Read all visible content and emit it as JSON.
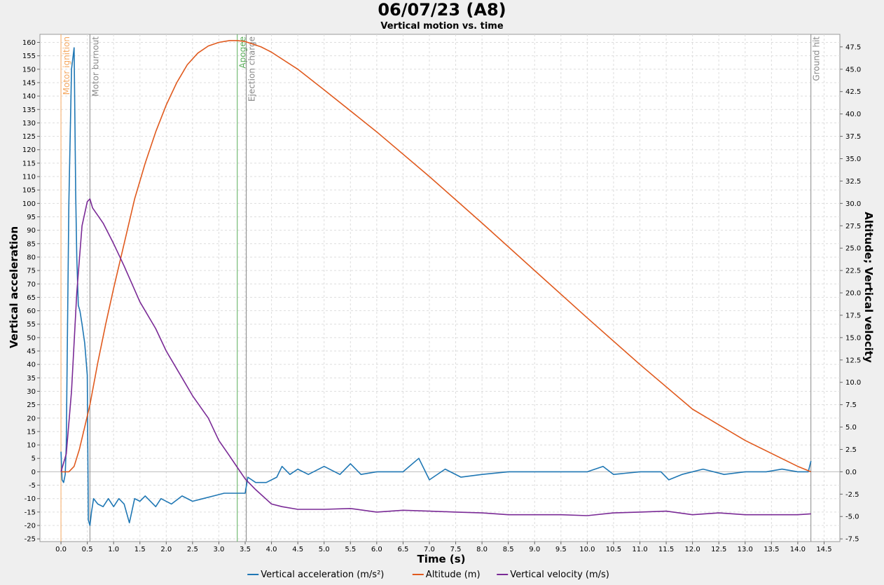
{
  "chart_data": {
    "type": "line",
    "title": "06/07/23 (A8)",
    "subtitle": "Vertical motion vs. time",
    "xlabel": "Time (s)",
    "ylabel_left": "Vertical acceleration",
    "ylabel_right": "Altitude; Vertical velocity",
    "xlim": [
      -0.4,
      14.8
    ],
    "ylim_left": [
      -26,
      163
    ],
    "ylim_right": [
      -7.8,
      48.9
    ],
    "x_ticks": [
      0.0,
      0.5,
      1.0,
      1.5,
      2.0,
      2.5,
      3.0,
      3.5,
      4.0,
      4.5,
      5.0,
      5.5,
      6.0,
      6.5,
      7.0,
      7.5,
      8.0,
      8.5,
      9.0,
      9.5,
      10.0,
      10.5,
      11.0,
      11.5,
      12.0,
      12.5,
      13.0,
      13.5,
      14.0,
      14.5
    ],
    "y_ticks_left": [
      -25,
      -20,
      -15,
      -10,
      -5,
      0,
      5,
      10,
      15,
      20,
      25,
      30,
      35,
      40,
      45,
      50,
      55,
      60,
      65,
      70,
      75,
      80,
      85,
      90,
      95,
      100,
      105,
      110,
      115,
      120,
      125,
      130,
      135,
      140,
      145,
      150,
      155,
      160
    ],
    "y_ticks_right": [
      -7.5,
      -5.0,
      -2.5,
      0.0,
      2.5,
      5.0,
      7.5,
      10.0,
      12.5,
      15.0,
      17.5,
      20.0,
      22.5,
      25.0,
      27.5,
      30.0,
      32.5,
      35.0,
      37.5,
      40.0,
      42.5,
      45.0,
      47.5
    ],
    "grid": true,
    "legend_position": "bottom",
    "events": [
      {
        "label": "Motor ignition",
        "t": 0.0,
        "color": "#f5a860"
      },
      {
        "label": "Motor burnout",
        "t": 0.55,
        "color": "#888888"
      },
      {
        "label": "Apogee",
        "t": 3.35,
        "color": "#5aad5a"
      },
      {
        "label": "Ejection charge",
        "t": 3.52,
        "color": "#888888"
      },
      {
        "label": "Ground hit",
        "t": 14.25,
        "color": "#888888"
      }
    ],
    "series": [
      {
        "name": "Vertical acceleration (m/s²)",
        "color": "#1f77b4",
        "axis": "left",
        "x": [
          0.0,
          0.02,
          0.05,
          0.08,
          0.1,
          0.15,
          0.2,
          0.25,
          0.28,
          0.3,
          0.33,
          0.36,
          0.4,
          0.45,
          0.5,
          0.52,
          0.55,
          0.58,
          0.62,
          0.7,
          0.8,
          0.9,
          1.0,
          1.1,
          1.2,
          1.3,
          1.4,
          1.5,
          1.6,
          1.8,
          1.9,
          2.1,
          2.3,
          2.5,
          2.7,
          2.9,
          3.1,
          3.3,
          3.5,
          3.55,
          3.7,
          3.9,
          4.1,
          4.2,
          4.35,
          4.5,
          4.7,
          5.0,
          5.3,
          5.5,
          5.7,
          6.0,
          6.5,
          6.8,
          7.0,
          7.3,
          7.6,
          8.0,
          8.5,
          9.0,
          9.5,
          10.0,
          10.3,
          10.5,
          11.0,
          11.4,
          11.55,
          11.8,
          12.2,
          12.6,
          13.0,
          13.4,
          13.7,
          14.0,
          14.2,
          14.25
        ],
        "y": [
          7.5,
          -3,
          -4,
          -1,
          10,
          100,
          150,
          158,
          103,
          80,
          62,
          60,
          55,
          48,
          36,
          -18,
          -20,
          -15,
          -10,
          -12,
          -13,
          -10,
          -13,
          -10,
          -12,
          -19,
          -10,
          -11,
          -9,
          -13,
          -10,
          -12,
          -9,
          -11,
          -10,
          -9,
          -8,
          -8,
          -8,
          -2,
          -4,
          -4,
          -2,
          2,
          -1,
          1,
          -1,
          2,
          -1,
          3,
          -1,
          0,
          0,
          5,
          -3,
          1,
          -2,
          -1,
          0,
          0,
          0,
          0,
          2,
          -1,
          0,
          0,
          -3,
          -1,
          1,
          -1,
          0,
          0,
          1,
          0,
          0,
          4
        ]
      },
      {
        "name": "Altitude (m)",
        "color": "#e05a1e",
        "axis": "right",
        "x": [
          0.0,
          0.15,
          0.25,
          0.35,
          0.45,
          0.55,
          0.7,
          0.85,
          1.0,
          1.2,
          1.4,
          1.6,
          1.8,
          2.0,
          2.2,
          2.4,
          2.6,
          2.8,
          3.0,
          3.2,
          3.35,
          3.5,
          3.8,
          4.0,
          4.5,
          5.0,
          6.0,
          7.0,
          8.0,
          9.0,
          10.0,
          11.0,
          12.0,
          13.0,
          14.0,
          14.25
        ],
        "y": [
          0.0,
          0.0,
          0.6,
          2.5,
          5.0,
          7.5,
          12.2,
          16.5,
          20.5,
          25.5,
          30.5,
          34.5,
          38.0,
          41.0,
          43.5,
          45.5,
          46.8,
          47.6,
          48.0,
          48.2,
          48.2,
          48.1,
          47.5,
          46.9,
          45.0,
          42.7,
          38.0,
          33.0,
          27.8,
          22.5,
          17.2,
          12.0,
          7.0,
          3.5,
          0.6,
          0.0
        ]
      },
      {
        "name": "Vertical velocity (m/s)",
        "color": "#7a2a96",
        "axis": "right",
        "x": [
          0.0,
          0.1,
          0.2,
          0.3,
          0.4,
          0.5,
          0.55,
          0.6,
          0.8,
          1.0,
          1.2,
          1.35,
          1.5,
          1.8,
          2.0,
          2.3,
          2.5,
          2.8,
          3.0,
          3.2,
          3.35,
          3.5,
          3.7,
          4.0,
          4.2,
          4.5,
          5.0,
          5.5,
          6.0,
          6.5,
          7.0,
          7.5,
          8.0,
          8.5,
          9.0,
          9.5,
          10.0,
          10.5,
          11.0,
          11.5,
          12.0,
          12.5,
          13.0,
          13.5,
          14.0,
          14.25
        ],
        "y": [
          0.0,
          2.0,
          9.0,
          20.0,
          27.5,
          30.2,
          30.5,
          29.5,
          27.8,
          25.5,
          23.0,
          21.0,
          19.0,
          16.0,
          13.5,
          10.5,
          8.5,
          6.0,
          3.5,
          1.8,
          0.5,
          -0.8,
          -2.0,
          -3.6,
          -3.9,
          -4.2,
          -4.2,
          -4.1,
          -4.5,
          -4.3,
          -4.4,
          -4.5,
          -4.6,
          -4.8,
          -4.8,
          -4.8,
          -4.9,
          -4.6,
          -4.5,
          -4.4,
          -4.8,
          -4.6,
          -4.8,
          -4.8,
          -4.8,
          -4.7
        ]
      }
    ]
  }
}
